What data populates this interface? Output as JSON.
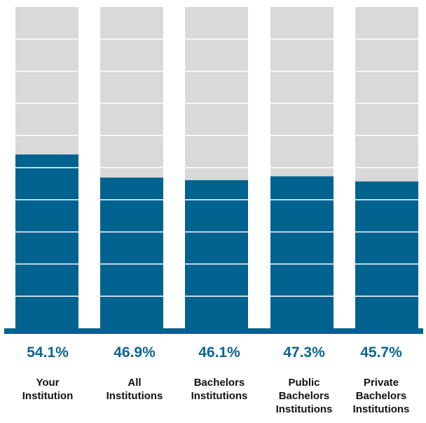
{
  "chart_data": {
    "type": "bar",
    "categories": [
      [
        "Your",
        "Institution"
      ],
      [
        "All",
        "Institutions"
      ],
      [
        "Bachelors",
        "Institutions"
      ],
      [
        "Public",
        "Bachelors",
        "Institutions"
      ],
      [
        "Private",
        "Bachelors",
        "Institutions"
      ]
    ],
    "values": [
      54.1,
      46.9,
      46.1,
      47.3,
      45.7
    ],
    "value_labels": [
      "54.1%",
      "46.9%",
      "46.1%",
      "47.3%",
      "45.7%"
    ],
    "ylim": [
      0,
      100
    ],
    "y_gridlines": [
      10,
      20,
      30,
      40,
      50,
      60,
      70,
      80,
      90
    ],
    "title": "",
    "xlabel": "",
    "ylabel": "",
    "grid": true,
    "legend": "none",
    "colors": {
      "bar_fill": "#00628f",
      "bar_background": "#d9d9d9",
      "baseline": "#00628f",
      "gridline": "#ffffff",
      "value_text": "#0b6593"
    }
  }
}
